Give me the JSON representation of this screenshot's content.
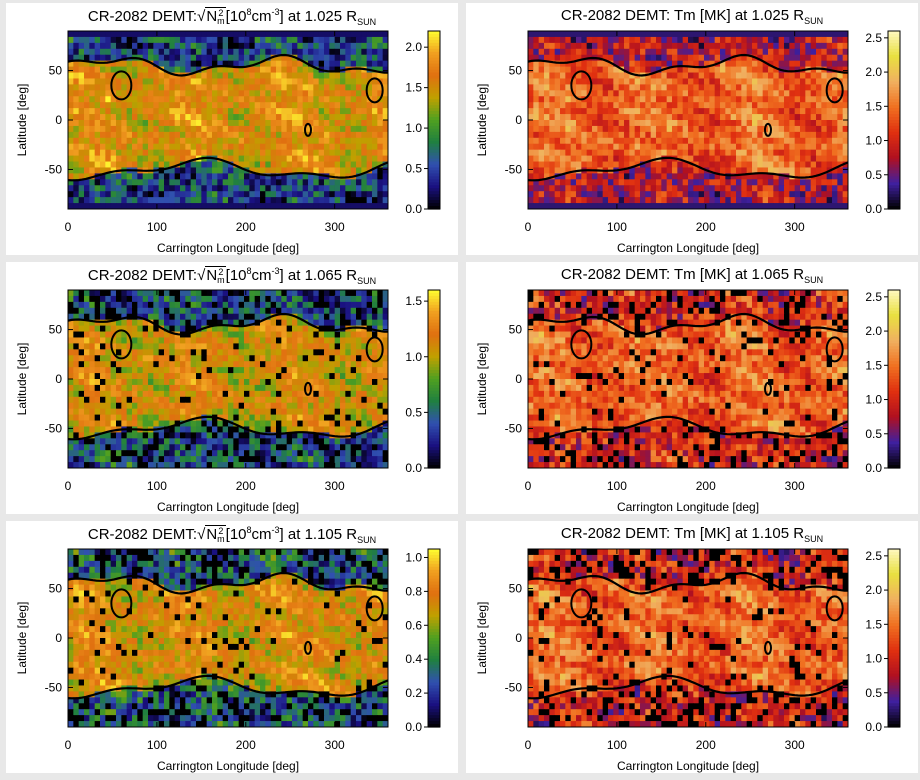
{
  "colors": {
    "page_background": "#e8e8e8",
    "panel_background": "#ffffff",
    "contour": "#000000",
    "density_colormap": [
      "#000000",
      "#1a1080",
      "#3050b0",
      "#208040",
      "#50a020",
      "#c0a000",
      "#e07010",
      "#f0a020",
      "#ffff30"
    ],
    "temperature_colormap": [
      "#000000",
      "#4020a0",
      "#b01020",
      "#e03010",
      "#f07020",
      "#f0b060",
      "#e8e040",
      "#fff8c0"
    ]
  },
  "shared_axes": {
    "xlabel": "Carrington Longitude [deg]",
    "ylabel": "Latitude [deg]",
    "x_ticks": [
      "0",
      "100",
      "200",
      "300"
    ],
    "y_ticks": [
      "50",
      "0",
      "-50"
    ]
  },
  "panels": [
    {
      "title": {
        "prefix": "CR-2082 DEMT:",
        "radicand_base": "N",
        "radicand_sup": "2",
        "radicand_sub": "m",
        "units_base": "[10",
        "units_exp": "8",
        "units_mid": "cm",
        "units_exp2": "-3",
        "units_close": "]",
        "at": "at 1.025 R",
        "sub": "SUN"
      },
      "colorbar_ticks": [
        "2.0",
        "1.5",
        "1.0",
        "0.5",
        "0.0"
      ]
    },
    {
      "title": {
        "text": "CR-2082 DEMT: Tm [MK] at 1.025 R",
        "sub": "SUN"
      },
      "colorbar_ticks": [
        "2.5",
        "2.0",
        "1.5",
        "1.0",
        "0.5",
        "0.0"
      ]
    },
    {
      "title": {
        "prefix": "CR-2082 DEMT:",
        "radicand_base": "N",
        "radicand_sup": "2",
        "radicand_sub": "m",
        "units_base": "[10",
        "units_exp": "8",
        "units_mid": "cm",
        "units_exp2": "-3",
        "units_close": "]",
        "at": "at 1.065 R",
        "sub": "SUN"
      },
      "colorbar_ticks": [
        "1.5",
        "1.0",
        "0.5",
        "0.0"
      ]
    },
    {
      "title": {
        "text": "CR-2082 DEMT: Tm [MK] at 1.065 R",
        "sub": "SUN"
      },
      "colorbar_ticks": [
        "2.5",
        "2.0",
        "1.5",
        "1.0",
        "0.5",
        "0.0"
      ]
    },
    {
      "title": {
        "prefix": "CR-2082 DEMT:",
        "radicand_base": "N",
        "radicand_sup": "2",
        "radicand_sub": "m",
        "units_base": "[10",
        "units_exp": "8",
        "units_mid": "cm",
        "units_exp2": "-3",
        "units_close": "]",
        "at": "at 1.105 R",
        "sub": "SUN"
      },
      "colorbar_ticks": [
        "1.0",
        "0.8",
        "0.6",
        "0.4",
        "0.2",
        "0.0"
      ]
    },
    {
      "title": {
        "text": "CR-2082 DEMT: Tm [MK] at 1.105 R",
        "sub": "SUN"
      },
      "colorbar_ticks": [
        "2.5",
        "2.0",
        "1.5",
        "1.0",
        "0.5",
        "0.0"
      ]
    }
  ],
  "chart_data": [
    {
      "type": "heatmap",
      "quantity": "density",
      "height": "1.025 R_SUN",
      "xlim": [
        0,
        360
      ],
      "ylim": [
        -90,
        90
      ],
      "colorbar_range": [
        0.0,
        2.2
      ],
      "colorbar_ticks": [
        2.0,
        1.5,
        1.0,
        0.5,
        0.0
      ],
      "x_ticks": [
        0,
        100,
        200,
        300
      ],
      "y_ticks": [
        50,
        0,
        -50
      ],
      "xlabel": "Carrington Longitude [deg]",
      "ylabel": "Latitude [deg]",
      "typical_value_low_latitude": 1.6,
      "typical_value_polar": 0.5,
      "bright_spots": [
        {
          "lon": 45,
          "lat": 22,
          "value": 2.2
        },
        {
          "lon": 125,
          "lat": 25,
          "value": 2.1
        }
      ]
    },
    {
      "type": "heatmap",
      "quantity": "temperature",
      "height": "1.025 R_SUN",
      "xlim": [
        0,
        360
      ],
      "ylim": [
        -90,
        90
      ],
      "colorbar_range": [
        0.0,
        2.6
      ],
      "colorbar_ticks": [
        2.5,
        2.0,
        1.5,
        1.0,
        0.5,
        0.0
      ],
      "x_ticks": [
        0,
        100,
        200,
        300
      ],
      "y_ticks": [
        50,
        0,
        -50
      ],
      "xlabel": "Carrington Longitude [deg]",
      "ylabel": "Latitude [deg]",
      "typical_value_low_latitude": 1.4,
      "typical_value_polar": 0.8,
      "bright_spots": [
        {
          "lon": 45,
          "lat": 22,
          "value": 2.0
        }
      ]
    },
    {
      "type": "heatmap",
      "quantity": "density",
      "height": "1.065 R_SUN",
      "xlim": [
        0,
        360
      ],
      "ylim": [
        -90,
        90
      ],
      "colorbar_range": [
        0.0,
        1.6
      ],
      "colorbar_ticks": [
        1.5,
        1.0,
        0.5,
        0.0
      ],
      "x_ticks": [
        0,
        100,
        200,
        300
      ],
      "y_ticks": [
        50,
        0,
        -50
      ],
      "xlabel": "Carrington Longitude [deg]",
      "ylabel": "Latitude [deg]",
      "typical_value_low_latitude": 1.1,
      "typical_value_polar": 0.4,
      "bright_spots": [
        {
          "lon": 20,
          "lat": 25,
          "value": 1.5
        },
        {
          "lon": 90,
          "lat": 22,
          "value": 1.5
        },
        {
          "lon": 130,
          "lat": 20,
          "value": 1.4
        }
      ]
    },
    {
      "type": "heatmap",
      "quantity": "temperature",
      "height": "1.065 R_SUN",
      "xlim": [
        0,
        360
      ],
      "ylim": [
        -90,
        90
      ],
      "colorbar_range": [
        0.0,
        2.6
      ],
      "colorbar_ticks": [
        2.5,
        2.0,
        1.5,
        1.0,
        0.5,
        0.0
      ],
      "x_ticks": [
        0,
        100,
        200,
        300
      ],
      "y_ticks": [
        50,
        0,
        -50
      ],
      "xlabel": "Carrington Longitude [deg]",
      "ylabel": "Latitude [deg]",
      "typical_value_low_latitude": 1.4,
      "typical_value_polar": 1.0,
      "bright_spots": [
        {
          "lon": 40,
          "lat": 25,
          "value": 2.0
        }
      ]
    },
    {
      "type": "heatmap",
      "quantity": "density",
      "height": "1.105 R_SUN",
      "xlim": [
        0,
        360
      ],
      "ylim": [
        -90,
        90
      ],
      "colorbar_range": [
        0.0,
        1.05
      ],
      "colorbar_ticks": [
        1.0,
        0.8,
        0.6,
        0.4,
        0.2,
        0.0
      ],
      "x_ticks": [
        0,
        100,
        200,
        300
      ],
      "y_ticks": [
        50,
        0,
        -50
      ],
      "xlabel": "Carrington Longitude [deg]",
      "ylabel": "Latitude [deg]",
      "typical_value_low_latitude": 0.75,
      "typical_value_polar": 0.3,
      "bright_spots": [
        {
          "lon": 25,
          "lat": 45,
          "value": 1.0
        },
        {
          "lon": 120,
          "lat": 30,
          "value": 0.95
        }
      ]
    },
    {
      "type": "heatmap",
      "quantity": "temperature",
      "height": "1.105 R_SUN",
      "xlim": [
        0,
        360
      ],
      "ylim": [
        -90,
        90
      ],
      "colorbar_range": [
        0.0,
        2.6
      ],
      "colorbar_ticks": [
        2.5,
        2.0,
        1.5,
        1.0,
        0.5,
        0.0
      ],
      "x_ticks": [
        0,
        100,
        200,
        300
      ],
      "y_ticks": [
        50,
        0,
        -50
      ],
      "xlabel": "Carrington Longitude [deg]",
      "ylabel": "Latitude [deg]",
      "typical_value_low_latitude": 1.4,
      "typical_value_polar": 1.0,
      "bright_spots": [
        {
          "lon": 100,
          "lat": 55,
          "value": 2.0
        }
      ]
    }
  ]
}
